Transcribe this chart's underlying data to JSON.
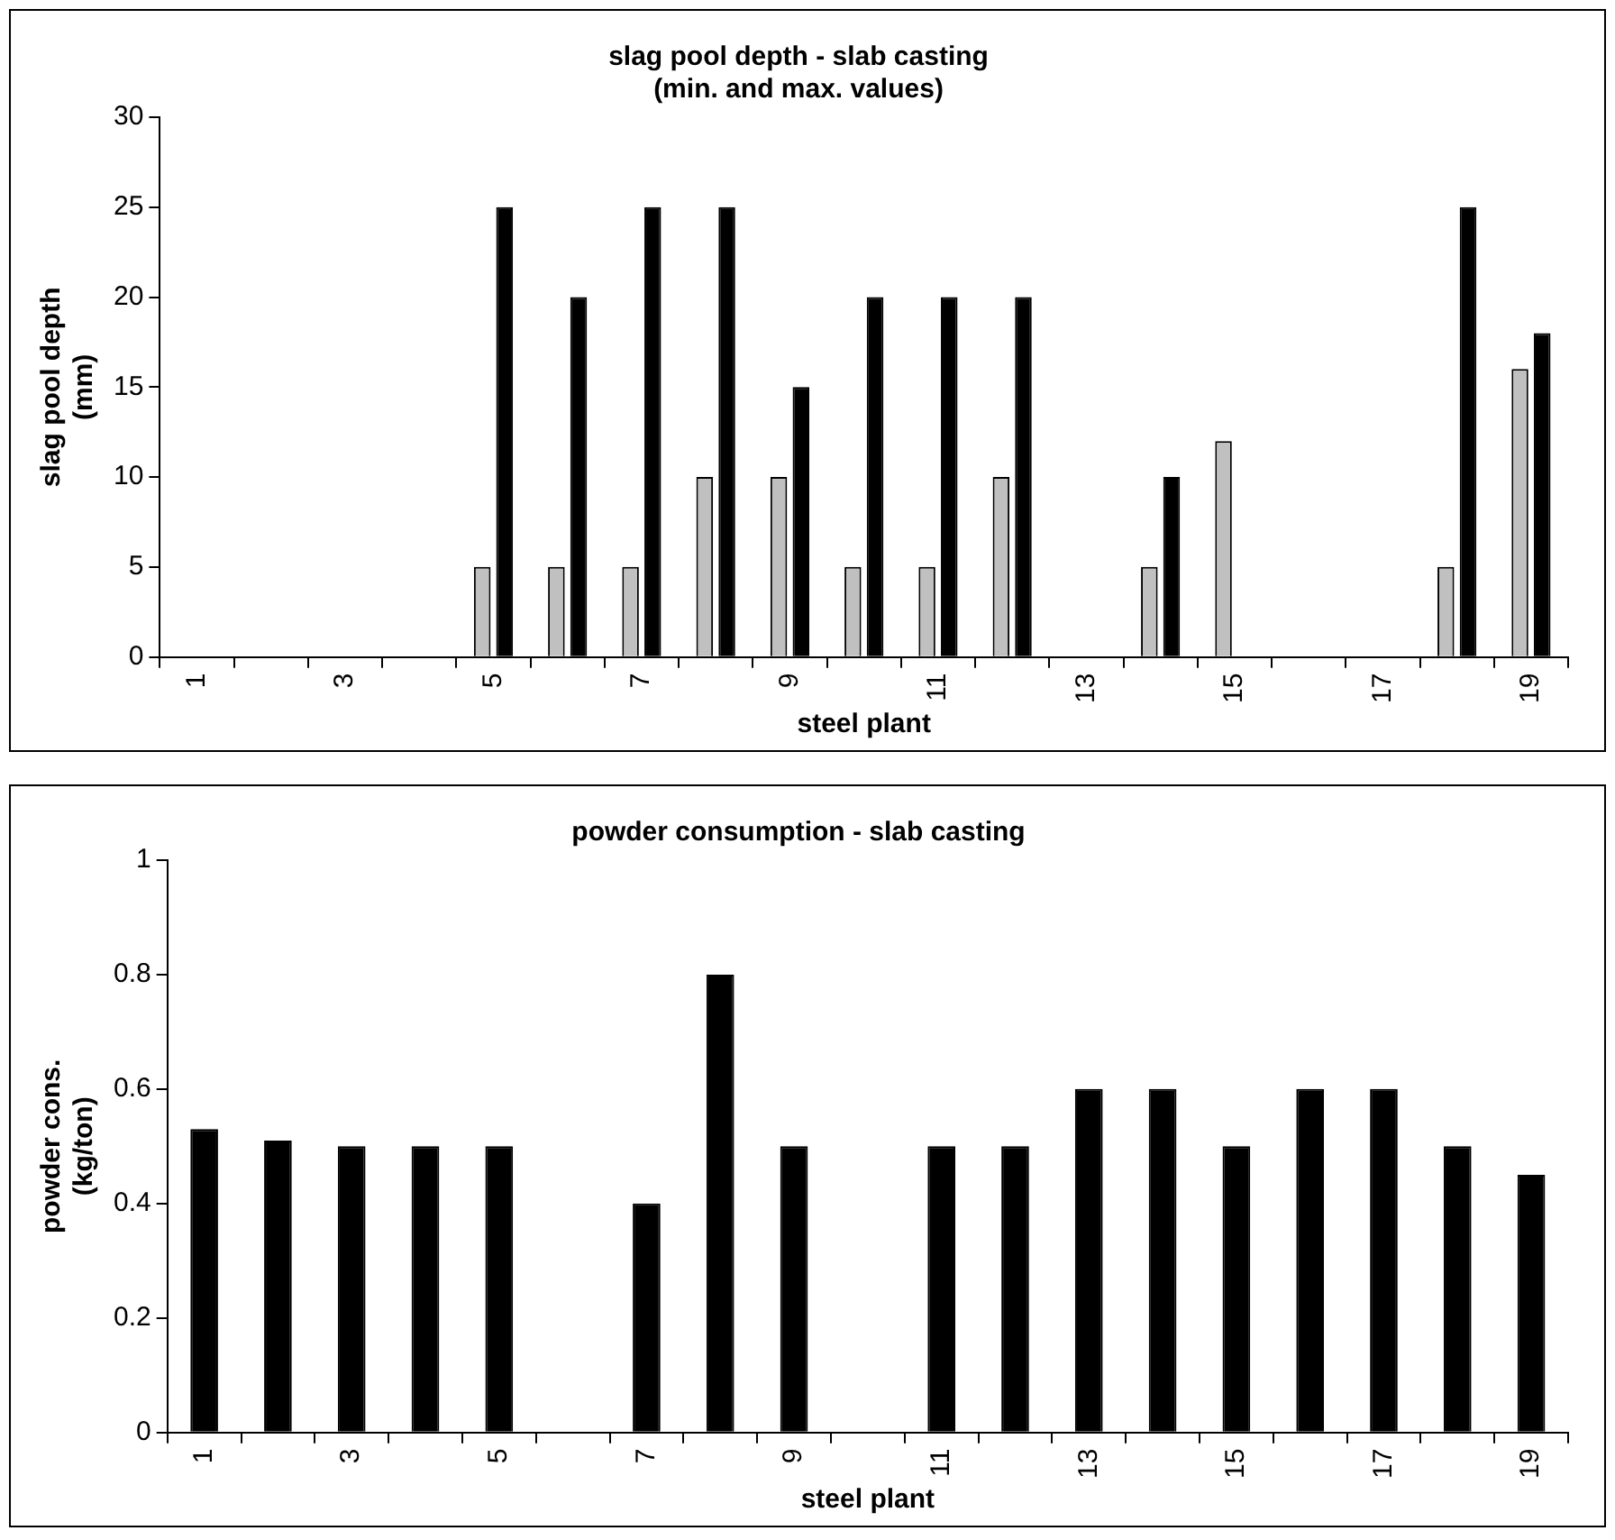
{
  "chart_data": [
    {
      "type": "bar",
      "title": "slag pool depth - slab casting",
      "subtitle": "(min. and max. values)",
      "xlabel": "steel plant",
      "ylabel": "slag pool depth (mm)",
      "categories": [
        "1",
        null,
        "3",
        null,
        "5",
        null,
        "7",
        null,
        "9",
        null,
        "11",
        null,
        "13",
        null,
        "15",
        null,
        "17",
        null,
        "19"
      ],
      "series": [
        {
          "color": "#c0c0c0",
          "values": [
            null,
            null,
            null,
            null,
            5,
            5,
            5,
            10,
            10,
            5,
            5,
            10,
            null,
            5,
            12,
            null,
            null,
            5,
            16
          ]
        },
        {
          "color": "#000000",
          "values": [
            null,
            null,
            null,
            null,
            25,
            20,
            25,
            25,
            15,
            20,
            20,
            20,
            null,
            10,
            null,
            null,
            null,
            25,
            18
          ]
        }
      ],
      "ylim": [
        0,
        30
      ],
      "yticks": [
        0,
        5,
        10,
        15,
        20,
        25,
        30
      ],
      "grid": false,
      "legend": false
    },
    {
      "type": "bar",
      "title": "powder consumption - slab casting",
      "xlabel": "steel plant",
      "ylabel": "powder cons. (kg/ton)",
      "categories": [
        "1",
        null,
        "3",
        null,
        "5",
        null,
        "7",
        null,
        "9",
        null,
        "11",
        null,
        "13",
        null,
        "15",
        null,
        "17",
        null,
        "19"
      ],
      "series": [
        {
          "color": "#000000",
          "values": [
            0.53,
            0.51,
            0.5,
            0.5,
            0.5,
            null,
            0.4,
            0.8,
            0.5,
            null,
            0.5,
            0.5,
            0.6,
            0.6,
            0.5,
            0.6,
            0.6,
            0.5,
            0.45
          ]
        }
      ],
      "ylim": [
        0,
        1
      ],
      "yticks": [
        0,
        0.2,
        0.4,
        0.6,
        0.8,
        1
      ],
      "grid": false,
      "legend": false
    }
  ]
}
